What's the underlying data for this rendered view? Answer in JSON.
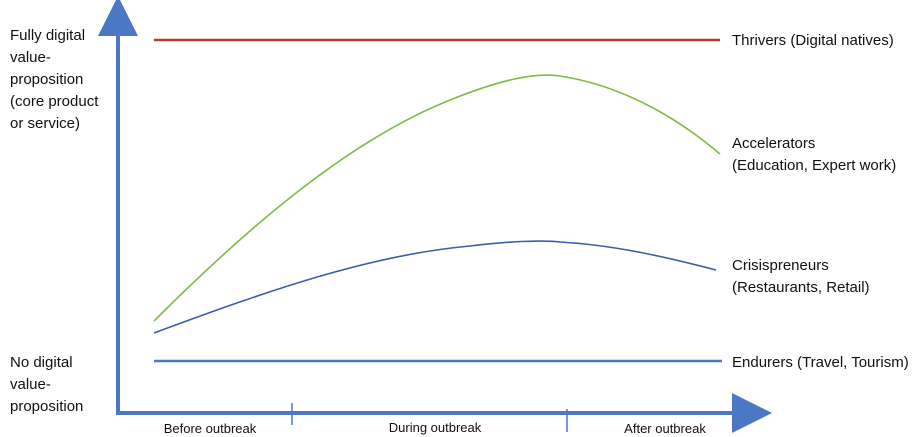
{
  "y_axis": {
    "top_label": "Fully digital\nvalue-\nproposition\n(core product\nor service)",
    "bottom_label": "No digital\nvalue-\nproposition"
  },
  "x_axis": {
    "phases": [
      "Before outbreak",
      "During outbreak",
      "After outbreak"
    ]
  },
  "series": [
    {
      "name": "Thrivers (Digital natives)",
      "color": "#c0392b"
    },
    {
      "name": "Accelerators\n(Education, Expert work)",
      "color": "#7dbb45"
    },
    {
      "name": "Crisispreneurs\n(Restaurants, Retail)",
      "color": "#3b5ea8"
    },
    {
      "name": "Endurers (Travel, Tourism)",
      "color": "#4a78c4"
    }
  ],
  "colors": {
    "axis": "#4a78c4"
  }
}
